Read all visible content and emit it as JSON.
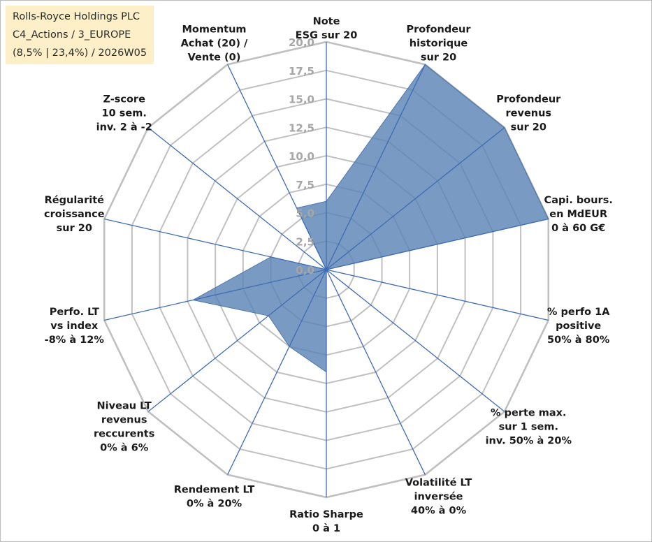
{
  "title_box": {
    "line1": "Rolls-Royce Holdings PLC",
    "line2": "C4_Actions / 3_EUROPE",
    "line3": "(8,5% | 23,4%) / 2026W05"
  },
  "chart_data": {
    "type": "radar",
    "axes": [
      [
        "Note",
        "ESG sur 20"
      ],
      [
        "Profondeur",
        "historique",
        "sur 20"
      ],
      [
        "Profondeur",
        "revenus",
        "sur 20"
      ],
      [
        "Capi. bours.",
        "en MdEUR",
        "0 à 60 G€"
      ],
      [
        "% perfo 1A",
        "positive",
        "50% à 80%"
      ],
      [
        "% perte max.",
        "sur 1 sem.",
        "inv. 50% à 20%"
      ],
      [
        "Volatilité LT",
        "inversée",
        "40% à 0%"
      ],
      [
        "Ratio Sharpe",
        "0 à 1"
      ],
      [
        "Rendement LT",
        "0% à 20%"
      ],
      [
        "Niveau LT",
        "revenus",
        "reccurents",
        "0% à 6%"
      ],
      [
        "Perfo. LT",
        "vs index",
        "-8% à 12%"
      ],
      [
        "Régularité",
        "croissance",
        "sur 20"
      ],
      [
        "Z-score",
        "10 sem.",
        "inv. 2 à -2"
      ],
      [
        "Momentum",
        "Achat (20) /",
        "Vente (0)"
      ]
    ],
    "values": [
      6.0,
      20.0,
      20.0,
      20.0,
      0.0,
      0.0,
      0.0,
      9.0,
      7.5,
      6.5,
      12.0,
      5.0,
      0.0,
      6.0
    ],
    "rlim": [
      0,
      20
    ],
    "ticks": [
      "0,0",
      "2,5",
      "5,0",
      "7,5",
      "10,0",
      "12,5",
      "15,0",
      "17,5",
      "20,0"
    ],
    "grid": true,
    "legend": "none",
    "colors": {
      "fill": "#5b84b4",
      "spoke": "#3e6bb5",
      "grid": "#c0c0c0",
      "text": "#1a1a1a",
      "ticks": "#a6a6a6"
    }
  }
}
